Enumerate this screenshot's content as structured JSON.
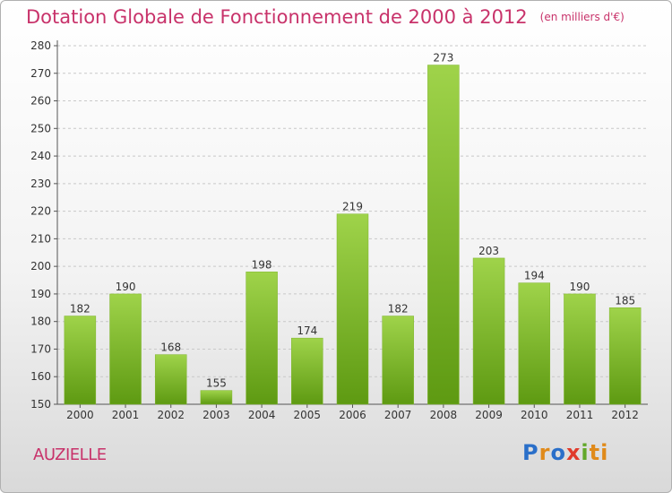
{
  "title": "Dotation Globale de Fonctionnement de 2000 à 2012",
  "subtitle": "(en milliers d'€)",
  "commune": "AUZIELLE",
  "logo": [
    "P",
    "r",
    "o",
    "x",
    "i",
    "ti"
  ],
  "colors": {
    "bar_top": "#9fd34a",
    "bar_bottom": "#5e9a12",
    "title": "#c8326a"
  },
  "chart_data": {
    "type": "bar",
    "categories": [
      "2000",
      "2001",
      "2002",
      "2003",
      "2004",
      "2005",
      "2006",
      "2007",
      "2008",
      "2009",
      "2010",
      "2011",
      "2012"
    ],
    "values": [
      182,
      190,
      168,
      155,
      198,
      174,
      219,
      182,
      273,
      203,
      194,
      190,
      185
    ],
    "title": "Dotation Globale de Fonctionnement de 2000 à 2012",
    "subtitle": "(en milliers d'€)",
    "xlabel": "",
    "ylabel": "",
    "ylim": [
      150,
      280
    ],
    "yticks": [
      150,
      160,
      170,
      180,
      190,
      200,
      210,
      220,
      230,
      240,
      250,
      260,
      270,
      280
    ],
    "grid": true,
    "grid_style": "dashed horizontal"
  }
}
